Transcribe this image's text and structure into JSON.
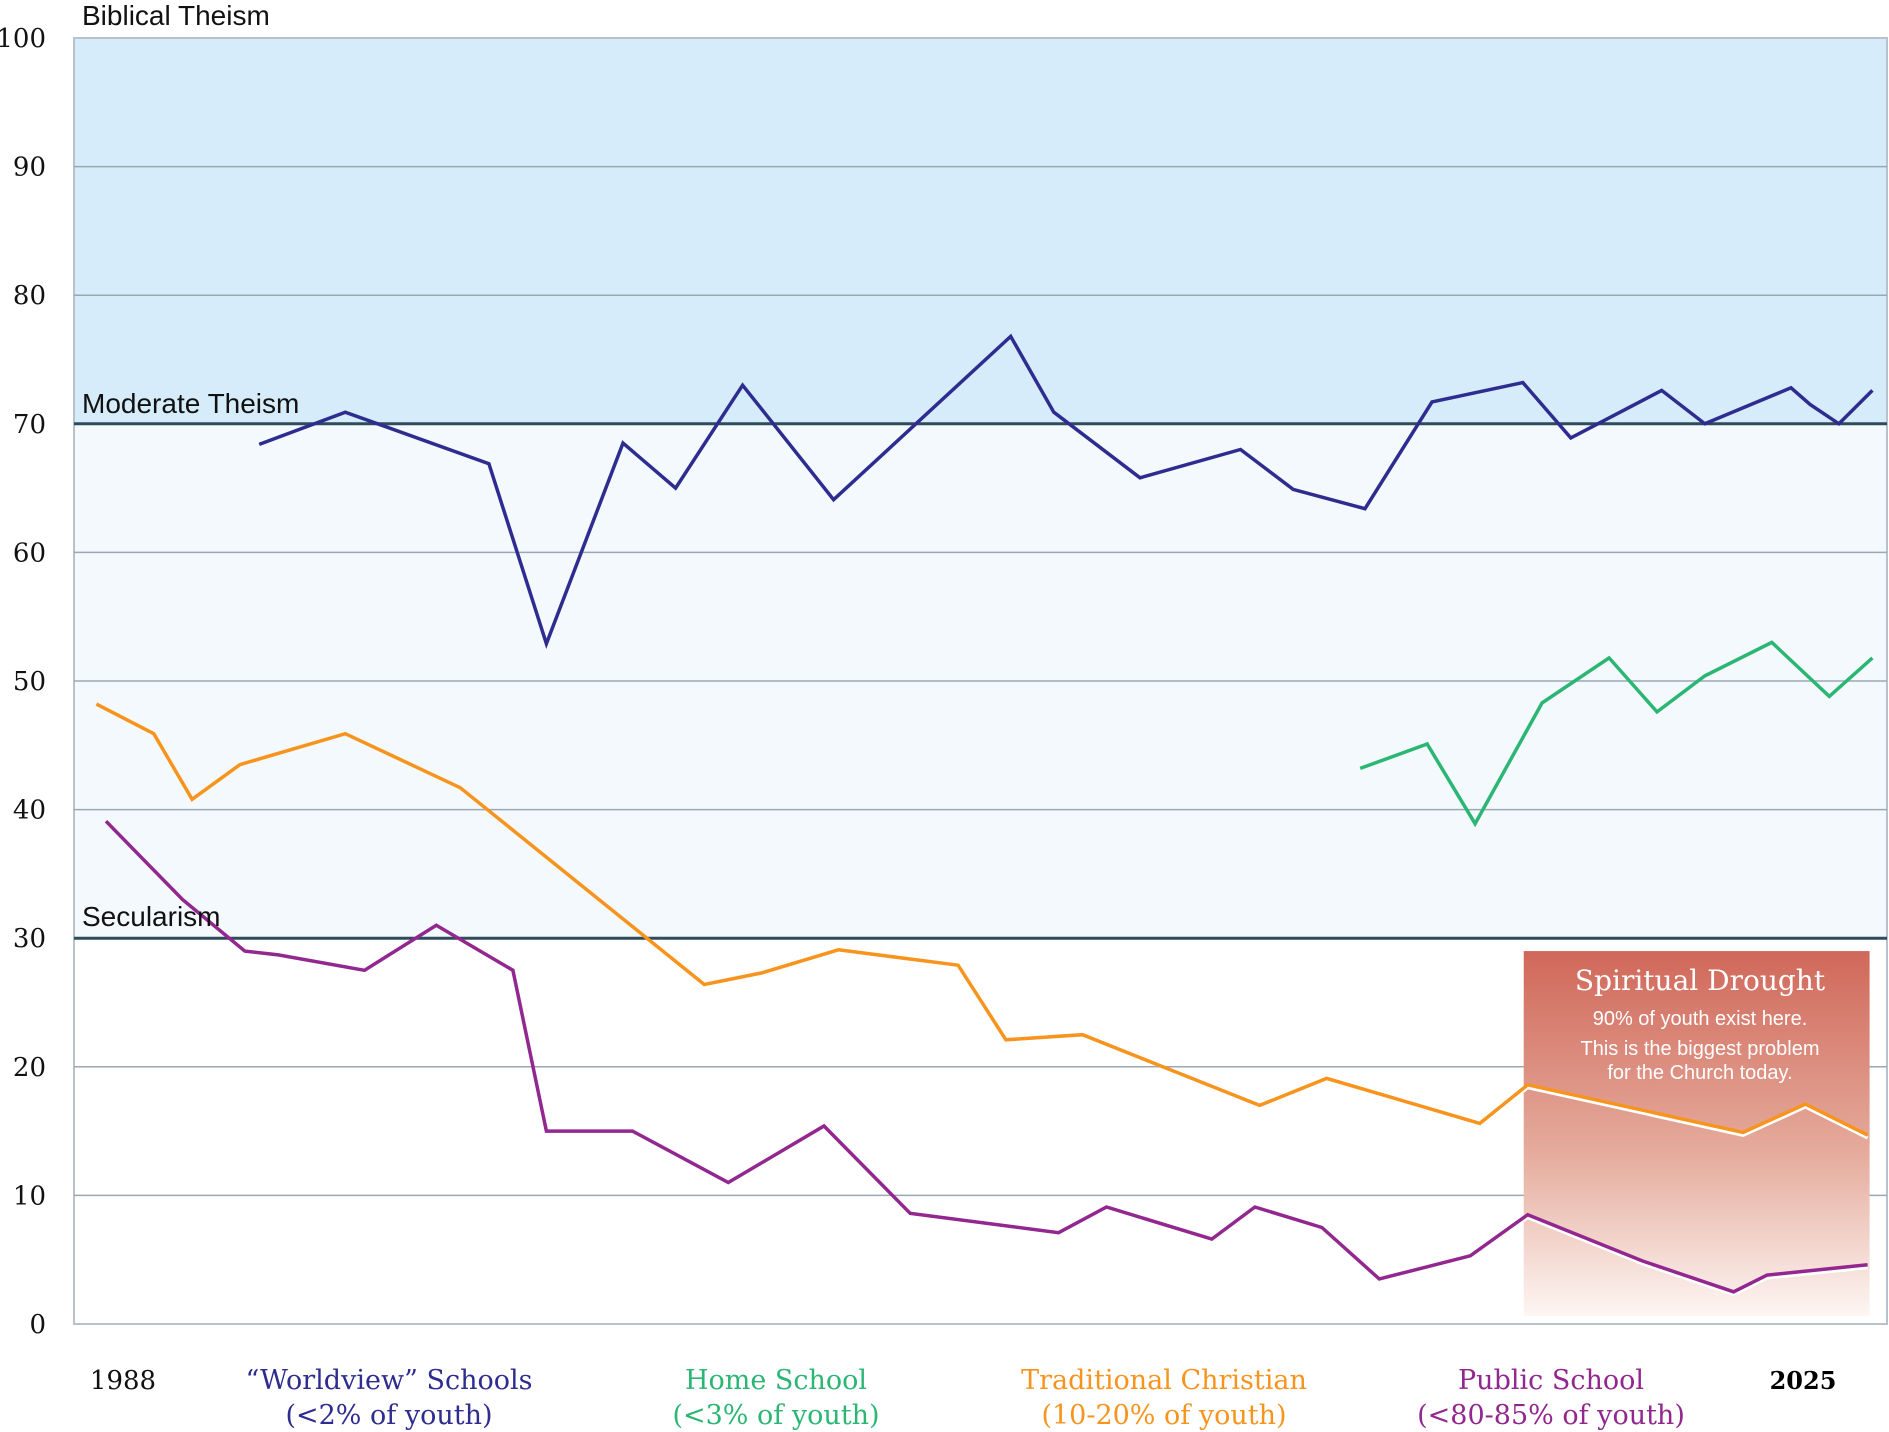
{
  "chart_data": {
    "type": "line",
    "xlim": [
      1988,
      2025
    ],
    "ylim": [
      0,
      100
    ],
    "grid": true,
    "y_ticks": [
      "0",
      "10",
      "20",
      "30",
      "40",
      "50",
      "60",
      "70",
      "80",
      "90",
      "100"
    ],
    "x_tick_labels": {
      "start": "1988",
      "end": "2025"
    },
    "zones": [
      {
        "label": "Biblical Theism",
        "from": 70,
        "to": 100,
        "color": "#d6ecfa"
      },
      {
        "label": "Moderate Theism",
        "from": 30,
        "to": 70,
        "color": "#f4f9fe"
      },
      {
        "label": "Secularism",
        "from": 0,
        "to": 30,
        "color": "#ffffff"
      }
    ],
    "annotation": {
      "title": "Spiritual Drought",
      "line1": "90% of youth exist here.",
      "line2": "This is the biggest problem",
      "line3": "for the Church today.",
      "x_range": [
        2017.9,
        2025
      ],
      "y_range": [
        0,
        29
      ],
      "color": "#d0685a"
    },
    "series": [
      {
        "name": "“Worldview” Schools",
        "sub": "(<2% of youth)",
        "color": "#2e2d8f",
        "x": [
          1991.4,
          1993.2,
          1996.2,
          1997.4,
          1999.0,
          2000.1,
          2001.5,
          2003.4,
          2007.1,
          2008.0,
          2009.8,
          2011.9,
          2013.0,
          2014.5,
          2015.9,
          2017.8,
          2018.8,
          2020.7,
          2021.6,
          2023.4,
          2023.8,
          2024.4,
          2025.1
        ],
        "y": [
          68.4,
          70.9,
          66.9,
          52.9,
          68.5,
          65.0,
          73.0,
          64.1,
          76.8,
          70.9,
          65.8,
          68.0,
          64.9,
          63.4,
          71.7,
          73.2,
          68.9,
          72.6,
          70.0,
          72.8,
          71.5,
          70.0,
          72.6
        ]
      },
      {
        "name": "Home School",
        "sub": "(<3% of youth)",
        "color": "#2bb673",
        "x": [
          2014.4,
          2015.8,
          2016.8,
          2018.2,
          2019.6,
          2020.6,
          2021.6,
          2023.0,
          2024.2,
          2025.1
        ],
        "y": [
          43.2,
          45.1,
          38.9,
          48.3,
          51.8,
          47.6,
          50.4,
          53.0,
          48.8,
          51.8
        ]
      },
      {
        "name": "Traditional Christian",
        "sub": "(10-20% of youth)",
        "color": "#f7941d",
        "x": [
          1988.0,
          1989.2,
          1990.0,
          1991.0,
          1993.2,
          1995.6,
          2000.7,
          2001.9,
          2003.5,
          2006.0,
          2007.0,
          2008.6,
          2012.3,
          2013.7,
          2016.9,
          2017.9,
          2022.4,
          2023.7,
          2025.0
        ],
        "y": [
          48.2,
          45.9,
          40.8,
          43.5,
          45.9,
          41.7,
          26.4,
          27.3,
          29.1,
          27.9,
          22.1,
          22.5,
          17.0,
          19.1,
          15.6,
          18.6,
          14.9,
          17.1,
          14.7
        ]
      },
      {
        "name": "Public School",
        "sub": "(<80-85% of youth)",
        "color": "#92278f",
        "x": [
          1988.2,
          1989.8,
          1991.1,
          1991.8,
          1993.6,
          1995.1,
          1996.7,
          1997.4,
          1999.2,
          2001.2,
          2003.2,
          2005.0,
          2008.1,
          2009.1,
          2011.3,
          2012.2,
          2013.6,
          2014.8,
          2016.7,
          2017.9,
          2020.3,
          2022.2,
          2022.9,
          2025.0
        ],
        "y": [
          39.1,
          33.0,
          29.0,
          28.7,
          27.5,
          31.0,
          27.5,
          15.0,
          15.0,
          11.0,
          15.4,
          8.6,
          7.1,
          9.1,
          6.6,
          9.1,
          7.5,
          3.5,
          5.3,
          8.5,
          4.9,
          2.5,
          3.8,
          4.6
        ]
      }
    ]
  }
}
